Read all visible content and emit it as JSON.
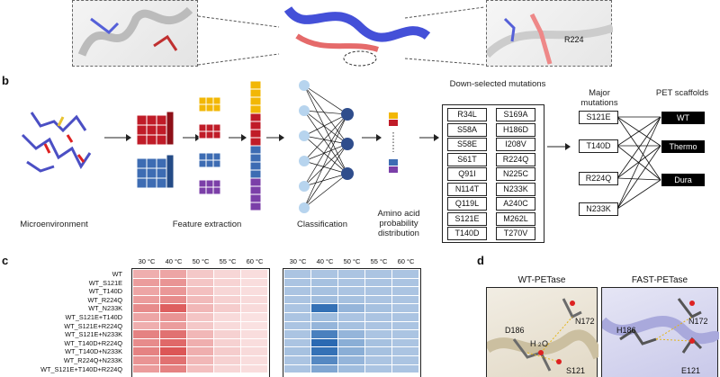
{
  "panel_a": {
    "residue_label": "R224"
  },
  "panel_b": {
    "letter": "b",
    "labels": {
      "microenvironment": "Microenvironment",
      "feature_extraction": "Feature extraction",
      "classification": "Classification",
      "amino_acid": "Amino acid probability distribution"
    },
    "downselected_title": "Down-selected mutations",
    "downselected": [
      [
        "R34L",
        "S169A"
      ],
      [
        "S58A",
        "H186D"
      ],
      [
        "S58E",
        "I208V"
      ],
      [
        "S61T",
        "R224Q"
      ],
      [
        "Q91I",
        "N225C"
      ],
      [
        "N114T",
        "N233K"
      ],
      [
        "Q119L",
        "A240C"
      ],
      [
        "S121E",
        "M262L"
      ],
      [
        "T140D",
        "T270V"
      ]
    ],
    "major_title": "Major mutations",
    "major": [
      "S121E",
      "T140D",
      "R224Q",
      "N233K"
    ],
    "scaffold_title": "PET scaffolds",
    "scaffolds": [
      "WT",
      "Thermo",
      "Dura"
    ]
  },
  "panel_c": {
    "letter": "c",
    "temperatures": [
      "30 °C",
      "40 °C",
      "50 °C",
      "55 °C",
      "60 °C"
    ],
    "rows": [
      "WT",
      "WT_S121E",
      "WT_T140D",
      "WT_R224Q",
      "WT_N233K",
      "WT_S121E+T140D",
      "WT_S121E+R224Q",
      "WT_S121E+N233K",
      "WT_T140D+R224Q",
      "WT_T140D+N233K",
      "WT_R224Q+N233K",
      "WT_S121E+T140D+R224Q"
    ],
    "red_matrix": [
      [
        0.35,
        0.4,
        0.2,
        0.12,
        0.08
      ],
      [
        0.45,
        0.5,
        0.22,
        0.14,
        0.08
      ],
      [
        0.4,
        0.48,
        0.25,
        0.12,
        0.08
      ],
      [
        0.45,
        0.55,
        0.28,
        0.15,
        0.1
      ],
      [
        0.55,
        0.8,
        0.3,
        0.18,
        0.1
      ],
      [
        0.4,
        0.5,
        0.22,
        0.1,
        0.06
      ],
      [
        0.35,
        0.45,
        0.2,
        0.1,
        0.06
      ],
      [
        0.6,
        0.7,
        0.3,
        0.15,
        0.08
      ],
      [
        0.55,
        0.75,
        0.35,
        0.15,
        0.08
      ],
      [
        0.6,
        0.85,
        0.35,
        0.18,
        0.1
      ],
      [
        0.5,
        0.7,
        0.3,
        0.15,
        0.08
      ],
      [
        0.45,
        0.6,
        0.25,
        0.12,
        0.08
      ]
    ],
    "blue_matrix": [
      [
        0.3,
        0.3,
        0.3,
        0.3,
        0.3
      ],
      [
        0.3,
        0.32,
        0.3,
        0.3,
        0.3
      ],
      [
        0.3,
        0.32,
        0.3,
        0.3,
        0.3
      ],
      [
        0.3,
        0.35,
        0.32,
        0.3,
        0.3
      ],
      [
        0.3,
        0.85,
        0.4,
        0.32,
        0.3
      ],
      [
        0.3,
        0.35,
        0.3,
        0.3,
        0.3
      ],
      [
        0.3,
        0.4,
        0.32,
        0.3,
        0.3
      ],
      [
        0.3,
        0.75,
        0.4,
        0.3,
        0.3
      ],
      [
        0.3,
        0.9,
        0.45,
        0.32,
        0.3
      ],
      [
        0.32,
        0.85,
        0.45,
        0.32,
        0.3
      ],
      [
        0.3,
        0.7,
        0.4,
        0.3,
        0.3
      ],
      [
        0.3,
        0.5,
        0.35,
        0.3,
        0.3
      ]
    ]
  },
  "panel_d": {
    "letter": "d",
    "left_title": "WT-PETase",
    "right_title": "FAST-PETase",
    "left_roman": "i",
    "right_roman": "ii",
    "left_residues": [
      "D186",
      "N172",
      "H",
      "2",
      "O",
      "S121"
    ],
    "right_residues": [
      "H186",
      "N172",
      "E121"
    ]
  }
}
